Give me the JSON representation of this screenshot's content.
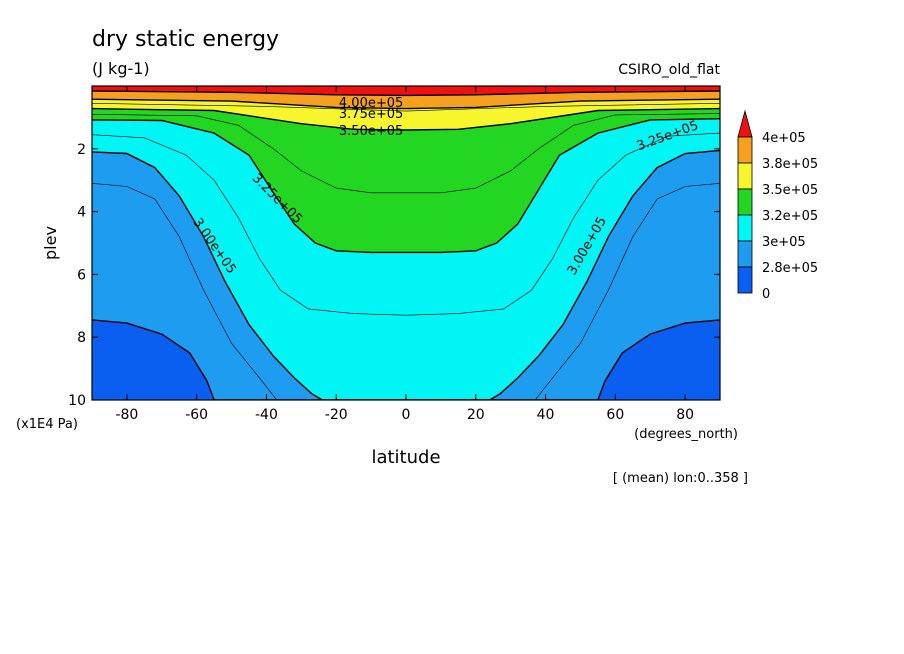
{
  "chart_data": {
    "type": "contour",
    "title": "dry static energy",
    "units": "(J kg-1)",
    "model": "CSIRO_old_flat",
    "xlabel": "latitude",
    "xunits": "(degrees_north)",
    "ylabel": "plev",
    "yunits": "(x1E4 Pa)",
    "xlim": [
      -90,
      90
    ],
    "ylim": [
      10,
      0
    ],
    "xticks": [
      "-80",
      "-60",
      "-40",
      "-20",
      "0",
      "20",
      "40",
      "60",
      "80"
    ],
    "xtick_values": [
      -80,
      -60,
      -40,
      -20,
      0,
      20,
      40,
      60,
      80
    ],
    "yticks": [
      "2",
      "4",
      "6",
      "8",
      "10"
    ],
    "ytick_values": [
      2,
      4,
      6,
      8,
      10
    ],
    "footnote": "[ (mean) lon:0..358 ]",
    "colorbar": {
      "labels": [
        "4e+05",
        "3.8e+05",
        "3.5e+05",
        "3.2e+05",
        "3e+05",
        "2.8e+05",
        "0"
      ],
      "colors": [
        "#f5a01f",
        "#f7f52b",
        "#22d622",
        "#00f5f5",
        "#1e9cf0",
        "#0a5ff0"
      ],
      "top_color": "#f01010"
    },
    "contour_labels": [
      "4.00e+05",
      "3.75e+05",
      "3.50e+05",
      "3.25e+05",
      "3.25e+05",
      "3.00e+05",
      "3.00e+05"
    ],
    "filled_levels": [
      {
        "name": "2.8e+05-3e+05",
        "color": "#1e9cf0",
        "boundary": [
          [
            -90,
            7.45
          ],
          [
            -80,
            7.55
          ],
          [
            -70,
            7.9
          ],
          [
            -62,
            8.5
          ],
          [
            -57,
            9.4
          ],
          [
            -55,
            10
          ],
          [
            55,
            10
          ],
          [
            57,
            9.4
          ],
          [
            62,
            8.5
          ],
          [
            70,
            7.9
          ],
          [
            80,
            7.55
          ],
          [
            90,
            7.45
          ]
        ]
      },
      {
        "name": "3e+05-3.2e+05",
        "color": "#00f5f5",
        "boundary": [
          [
            -90,
            2.1
          ],
          [
            -80,
            2.15
          ],
          [
            -72,
            2.6
          ],
          [
            -65,
            3.5
          ],
          [
            -58,
            4.8
          ],
          [
            -52,
            6.2
          ],
          [
            -45,
            7.6
          ],
          [
            -38,
            8.6
          ],
          [
            -32,
            9.3
          ],
          [
            -27,
            9.8
          ],
          [
            -24,
            10
          ],
          [
            24,
            10
          ],
          [
            27,
            9.8
          ],
          [
            32,
            9.3
          ],
          [
            38,
            8.6
          ],
          [
            45,
            7.6
          ],
          [
            52,
            6.2
          ],
          [
            58,
            4.8
          ],
          [
            65,
            3.5
          ],
          [
            72,
            2.6
          ],
          [
            80,
            2.15
          ],
          [
            90,
            2.05
          ]
        ]
      },
      {
        "name": "3.2e+05-3.5e+05",
        "color": "#22d622",
        "boundary": [
          [
            -90,
            1.08
          ],
          [
            -70,
            1.1
          ],
          [
            -55,
            1.5
          ],
          [
            -45,
            2.2
          ],
          [
            -38,
            3.4
          ],
          [
            -32,
            4.4
          ],
          [
            -26,
            5.0
          ],
          [
            -20,
            5.25
          ],
          [
            -10,
            5.3
          ],
          [
            10,
            5.3
          ],
          [
            20,
            5.25
          ],
          [
            26,
            5.0
          ],
          [
            32,
            4.4
          ],
          [
            38,
            3.3
          ],
          [
            44,
            2.2
          ],
          [
            55,
            1.5
          ],
          [
            70,
            1.08
          ],
          [
            90,
            1.04
          ]
        ]
      },
      {
        "name": "3.5e+05-3.8e+05",
        "color": "#f7f52b",
        "boundary": [
          [
            -90,
            0.72
          ],
          [
            -55,
            0.78
          ],
          [
            -30,
            1.2
          ],
          [
            -15,
            1.38
          ],
          [
            0,
            1.4
          ],
          [
            15,
            1.38
          ],
          [
            30,
            1.2
          ],
          [
            55,
            0.78
          ],
          [
            90,
            0.72
          ]
        ]
      },
      {
        "name": "3.8e+05-4e+05",
        "color": "#f5a01f",
        "boundary": [
          [
            -90,
            0.42
          ],
          [
            -50,
            0.48
          ],
          [
            -20,
            0.68
          ],
          [
            0,
            0.72
          ],
          [
            20,
            0.68
          ],
          [
            50,
            0.48
          ],
          [
            90,
            0.42
          ]
        ]
      },
      {
        "name": ">4e+05",
        "color": "#f01010",
        "boundary": [
          [
            -90,
            0.16
          ],
          [
            -50,
            0.2
          ],
          [
            -20,
            0.28
          ],
          [
            0,
            0.3
          ],
          [
            20,
            0.28
          ],
          [
            50,
            0.2
          ],
          [
            90,
            0.16
          ]
        ]
      }
    ],
    "intermediate_contours": [
      [
        [
          -90,
          3.1
        ],
        [
          -80,
          3.2
        ],
        [
          -72,
          3.6
        ],
        [
          -65,
          4.8
        ],
        [
          -58,
          6.5
        ],
        [
          -50,
          8.2
        ],
        [
          -42,
          9.3
        ],
        [
          -37,
          10
        ]
      ],
      [
        [
          -90,
          1.55
        ],
        [
          -75,
          1.65
        ],
        [
          -63,
          2.2
        ],
        [
          -55,
          3.0
        ],
        [
          -48,
          4.2
        ],
        [
          -42,
          5.5
        ],
        [
          -36,
          6.5
        ],
        [
          -28,
          7.1
        ],
        [
          -15,
          7.25
        ],
        [
          0,
          7.3
        ],
        [
          15,
          7.25
        ],
        [
          28,
          7.1
        ],
        [
          36,
          6.5
        ],
        [
          42,
          5.5
        ],
        [
          48,
          4.2
        ],
        [
          55,
          3.0
        ],
        [
          63,
          2.2
        ],
        [
          75,
          1.6
        ],
        [
          90,
          1.5
        ]
      ],
      [
        [
          -90,
          0.9
        ],
        [
          -60,
          0.95
        ],
        [
          -48,
          1.25
        ],
        [
          -38,
          2.0
        ],
        [
          -30,
          2.7
        ],
        [
          -20,
          3.25
        ],
        [
          -10,
          3.4
        ],
        [
          0,
          3.4
        ],
        [
          10,
          3.4
        ],
        [
          20,
          3.25
        ],
        [
          30,
          2.7
        ],
        [
          38,
          2.0
        ],
        [
          48,
          1.25
        ],
        [
          60,
          0.92
        ],
        [
          90,
          0.88
        ]
      ],
      [
        [
          37,
          10
        ],
        [
          42,
          9.3
        ],
        [
          50,
          8.2
        ],
        [
          58,
          6.5
        ],
        [
          65,
          4.8
        ],
        [
          72,
          3.6
        ],
        [
          80,
          3.2
        ],
        [
          90,
          3.1
        ]
      ],
      [
        [
          -90,
          0.55
        ],
        [
          -40,
          0.65
        ],
        [
          0,
          0.8
        ],
        [
          40,
          0.65
        ],
        [
          90,
          0.55
        ]
      ]
    ]
  }
}
